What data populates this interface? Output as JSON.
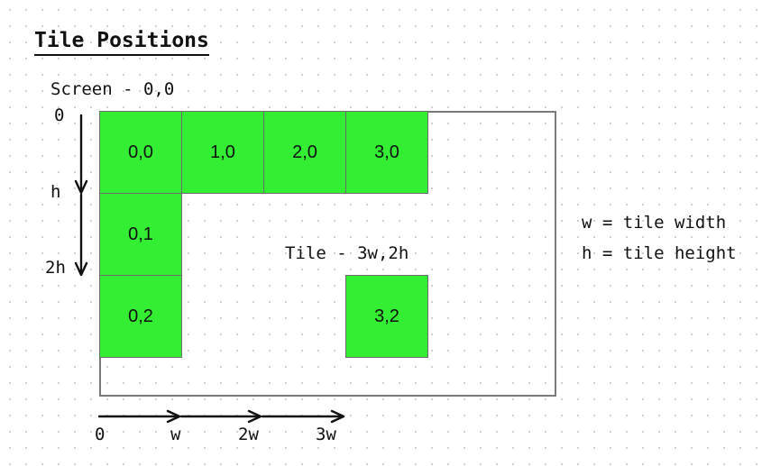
{
  "title": "Tile Positions",
  "screen_label": "Screen - 0,0",
  "tile_annotation": "Tile - 3w,2h",
  "legend": {
    "width": "w = tile width",
    "height": "h = tile height"
  },
  "y_axis": {
    "labels": [
      "0",
      "h",
      "2h"
    ]
  },
  "x_axis": {
    "labels": [
      "0",
      "w",
      "2w",
      "3w"
    ]
  },
  "colors": {
    "tile_fill": "#33ee33",
    "frame": "#7a7a7a"
  },
  "tiles": [
    {
      "col": 0,
      "row": 0,
      "label": "0,0"
    },
    {
      "col": 1,
      "row": 0,
      "label": "1,0"
    },
    {
      "col": 2,
      "row": 0,
      "label": "2,0"
    },
    {
      "col": 3,
      "row": 0,
      "label": "3,0"
    },
    {
      "col": 0,
      "row": 1,
      "label": "0,1"
    },
    {
      "col": 0,
      "row": 2,
      "label": "0,2"
    },
    {
      "col": 3,
      "row": 2,
      "label": "3,2"
    }
  ]
}
